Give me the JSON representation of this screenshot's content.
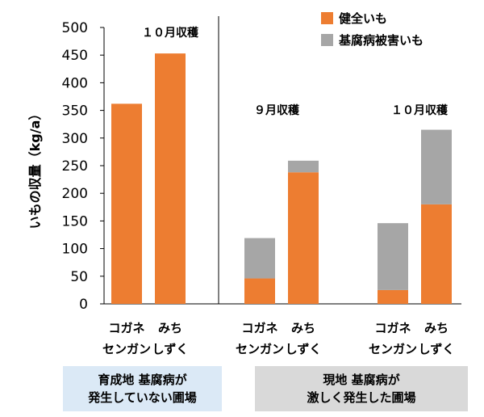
{
  "chart_data": {
    "type": "bar",
    "stacked": true,
    "ylabel": "いもの収量（kg/a）",
    "ylim": [
      0,
      500
    ],
    "ytick_step": 50,
    "yticks": [
      "0",
      "50",
      "100",
      "150",
      "200",
      "250",
      "300",
      "350",
      "400",
      "450",
      "500"
    ],
    "series": [
      {
        "name": "健全いも",
        "color": "#ed7d31"
      },
      {
        "name": "基腐病被害いも",
        "color": "#a6a6a6"
      }
    ],
    "legend": {
      "position": "top-right"
    },
    "grid": false,
    "panels": [
      {
        "group_label": [
          "育成地 基腐病が",
          "発生していない圃場"
        ],
        "harvest_labels": [
          "１０月収穫"
        ],
        "bars": [
          {
            "line1": "コガネ",
            "line2": "センガン",
            "healthy": 362,
            "diseased": 0
          },
          {
            "line1": "みち",
            "line2": "しずく",
            "healthy": 453,
            "diseased": 0
          }
        ]
      },
      {
        "group_label": [
          "現地 基腐病が",
          "激しく発生した圃場"
        ],
        "harvest_labels": [
          "９月収穫",
          "１０月収穫"
        ],
        "bars": [
          {
            "line1": "コガネ",
            "line2": "センガン",
            "healthy": 46,
            "diseased": 73
          },
          {
            "line1": "みち",
            "line2": "しずく",
            "healthy": 238,
            "diseased": 21
          },
          {
            "line1": "コガネ",
            "line2": "センガン",
            "healthy": 25,
            "diseased": 121
          },
          {
            "line1": "みち",
            "line2": "しずく",
            "healthy": 180,
            "diseased": 135
          }
        ]
      }
    ]
  }
}
